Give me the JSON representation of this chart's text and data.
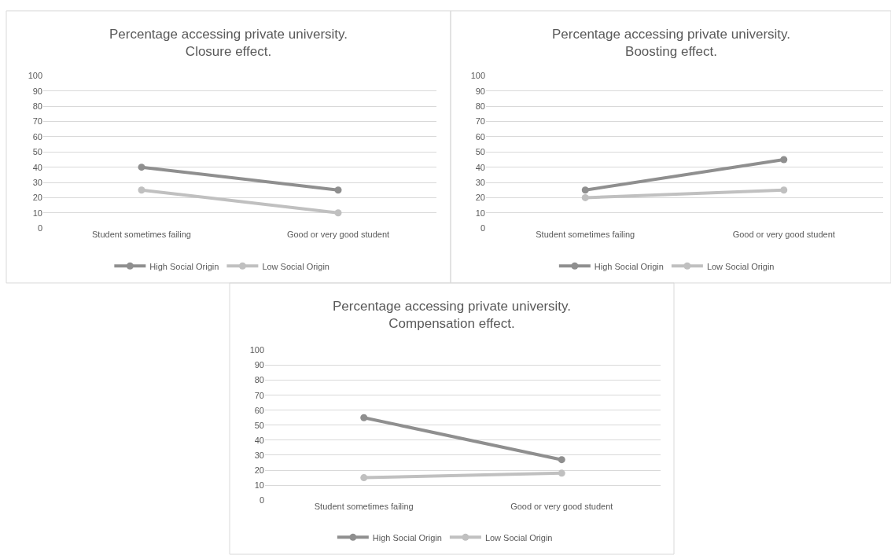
{
  "chart_data": [
    {
      "type": "line",
      "title": "Percentage accessing private university.\nClosure effect.",
      "categories": [
        "Student sometimes failing",
        "Good or very good student"
      ],
      "series": [
        {
          "name": "High Social Origin",
          "color": "#8f8f8f",
          "values": [
            40,
            25
          ]
        },
        {
          "name": "Low Social Origin",
          "color": "#c0c0c0",
          "values": [
            25,
            10
          ]
        }
      ],
      "ylim": [
        0,
        100
      ],
      "yticks": [
        0,
        10,
        20,
        30,
        40,
        50,
        60,
        70,
        80,
        90,
        100
      ],
      "grid": "y",
      "legend": "bottom",
      "marker": "circle",
      "line_style": "solid"
    },
    {
      "type": "line",
      "title": "Percentage accessing private university.\nBoosting effect.",
      "categories": [
        "Student sometimes failing",
        "Good or very good student"
      ],
      "series": [
        {
          "name": "High Social Origin",
          "color": "#8f8f8f",
          "values": [
            25,
            45
          ]
        },
        {
          "name": "Low Social Origin",
          "color": "#c0c0c0",
          "values": [
            20,
            25
          ]
        }
      ],
      "ylim": [
        0,
        100
      ],
      "yticks": [
        0,
        10,
        20,
        30,
        40,
        50,
        60,
        70,
        80,
        90,
        100
      ],
      "grid": "y",
      "legend": "bottom",
      "marker": "circle",
      "line_style": "solid"
    },
    {
      "type": "line",
      "title": "Percentage accessing private university.\nCompensation effect.",
      "categories": [
        "Student sometimes failing",
        "Good or very good student"
      ],
      "series": [
        {
          "name": "High Social Origin",
          "color": "#8f8f8f",
          "values": [
            55,
            27
          ]
        },
        {
          "name": "Low Social Origin",
          "color": "#c0c0c0",
          "values": [
            15,
            18
          ]
        }
      ],
      "ylim": [
        0,
        100
      ],
      "yticks": [
        0,
        10,
        20,
        30,
        40,
        50,
        60,
        70,
        80,
        90,
        100
      ],
      "grid": "y",
      "legend": "bottom",
      "marker": "circle",
      "line_style": "solid"
    }
  ]
}
